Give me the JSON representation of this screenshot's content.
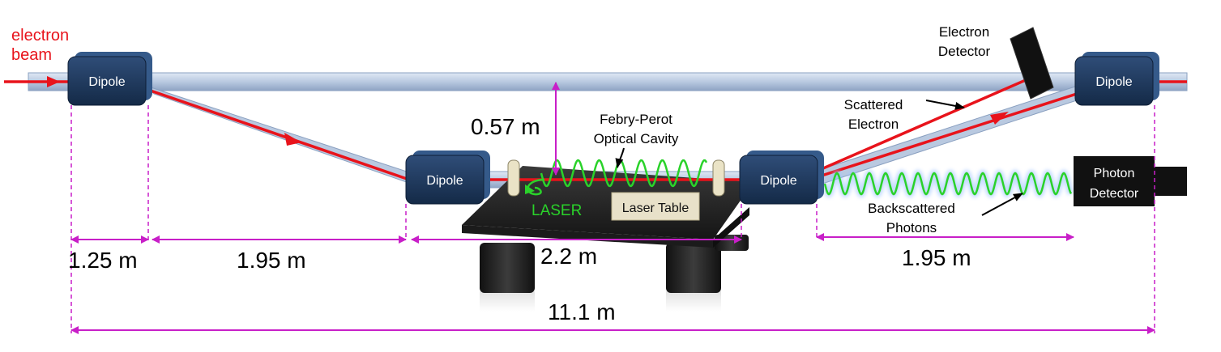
{
  "labels": {
    "electron_beam_line1": "electron",
    "electron_beam_line2": "beam",
    "dipole": "Dipole",
    "laser_table": "Laser Table",
    "laser": "LASER",
    "cavity_line1": "Febry-Perot",
    "cavity_line2": "Optical Cavity",
    "electron_detector_line1": "Electron",
    "electron_detector_line2": "Detector",
    "scattered_line1": "Scattered",
    "scattered_line2": "Electron",
    "photon_detector_line1": "Photon",
    "photon_detector_line2": "Detector",
    "backscattered_line1": "Backscattered",
    "backscattered_line2": "Photons"
  },
  "dimensions": {
    "height_offset": "0.57 m",
    "d1": "1.25 m",
    "d2": "1.95 m",
    "d3": "2.2 m",
    "d4": "1.95 m",
    "total": "11.1 m"
  },
  "colors": {
    "beam": "#e8131b",
    "dimension": "#c81fc8",
    "dipole": "#1f3a5f",
    "pipe": "#c9d7ea",
    "laser": "#2ad22a",
    "detector": "#111111",
    "table_top": "#2a2a2a",
    "table_label_bg": "#e8e1c9"
  }
}
